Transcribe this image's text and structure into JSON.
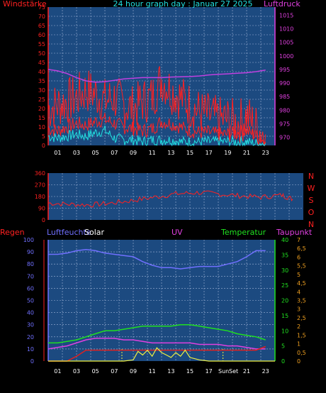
{
  "title": "24 hour graph day : Januar 27 2025",
  "colors": {
    "background": "#000000",
    "plot_bg": "#1c4a80",
    "grid": "#a0b4d8",
    "wind": "#ff2020",
    "gust_cyan": "#20e0e0",
    "pressure": "#c040e0",
    "direction": "#ff2020",
    "humidity": "#7070ff",
    "temperature": "#20e020",
    "dewpoint": "#e040e0",
    "rain": "#e02020",
    "solar": "#f0f040",
    "axis_red": "#ff2020",
    "axis_magenta": "#e040e0",
    "axis_cyan": "#20e0e0",
    "axis_green": "#20e020",
    "axis_orange": "#f0a020",
    "axis_blue": "#7070ff",
    "white": "#ffffff"
  },
  "chart_data": [
    {
      "id": "wind-pressure",
      "type": "line",
      "labels": {
        "left": "Windstärke",
        "title": "24 hour graph day : Januar 27 2025",
        "right": "Luftdruck"
      },
      "x_ticks": [
        "01",
        "03",
        "05",
        "07",
        "09",
        "11",
        "13",
        "15",
        "17",
        "19",
        "21",
        "23"
      ],
      "left_axis": {
        "min": 0,
        "max": 75,
        "ticks": [
          "0",
          "5",
          "10",
          "15",
          "20",
          "25",
          "30",
          "35",
          "40",
          "45",
          "50",
          "55",
          "60",
          "65",
          "70",
          "75"
        ]
      },
      "right_axis": {
        "min": 967,
        "max": 1018,
        "ticks": [
          "970",
          "975",
          "980",
          "985",
          "990",
          "995",
          "1000",
          "1005",
          "1010",
          "1015"
        ]
      },
      "series": [
        {
          "id": "wind-avg",
          "color": "red",
          "unit": "left",
          "x": [
            0,
            1,
            2,
            3,
            4,
            5,
            6,
            7,
            8,
            9,
            10,
            11,
            12,
            13,
            14,
            15,
            16,
            17,
            18,
            19,
            20,
            21,
            22,
            23
          ],
          "values": [
            9,
            8,
            10,
            12,
            11,
            13,
            14,
            12,
            10,
            9,
            8,
            9,
            13,
            12,
            10,
            8,
            7,
            7,
            6,
            6,
            7,
            8,
            5,
            2
          ]
        },
        {
          "id": "wind-gust",
          "color": "red",
          "unit": "left",
          "x": [
            0,
            1,
            2,
            3,
            4,
            5,
            6,
            7,
            8,
            9,
            10,
            11,
            12,
            13,
            14,
            15,
            16,
            17,
            18,
            19,
            20,
            21,
            22,
            23
          ],
          "values": [
            20,
            22,
            24,
            26,
            30,
            28,
            24,
            26,
            22,
            20,
            24,
            26,
            36,
            30,
            26,
            22,
            18,
            16,
            14,
            14,
            12,
            16,
            10,
            6
          ]
        },
        {
          "id": "wind-cyan",
          "color": "cyan",
          "unit": "left",
          "x": [
            0,
            1,
            2,
            3,
            4,
            5,
            6,
            7,
            8,
            9,
            10,
            11,
            12,
            13,
            14,
            15,
            16,
            17,
            18,
            19,
            20,
            21,
            22,
            23
          ],
          "values": [
            5,
            4,
            5,
            6,
            5,
            7,
            8,
            4,
            3,
            3,
            2,
            3,
            3,
            3,
            2,
            2,
            2,
            2,
            2,
            2,
            2,
            2,
            1,
            1
          ]
        },
        {
          "id": "pressure",
          "color": "pressure",
          "unit": "right",
          "x": [
            0,
            1,
            2,
            3,
            4,
            5,
            6,
            7,
            8,
            9,
            10,
            11,
            12,
            13,
            14,
            15,
            16,
            17,
            18,
            19,
            20,
            21,
            22,
            23
          ],
          "values": [
            995,
            994.5,
            993.5,
            992,
            990.8,
            990.3,
            990.5,
            991,
            991.5,
            991.8,
            992,
            992,
            992,
            992.2,
            992.3,
            992.4,
            992.6,
            993,
            993.2,
            993.4,
            993.6,
            993.8,
            994.2,
            994.8
          ]
        }
      ]
    },
    {
      "id": "wind-direction",
      "type": "line",
      "labels": {
        "right": [
          "N",
          "W",
          "S",
          "O",
          "N"
        ]
      },
      "x_ticks": [],
      "left_axis": {
        "min": 0,
        "max": 360,
        "ticks": [
          "0",
          "90",
          "180",
          "270",
          "360"
        ]
      },
      "series": [
        {
          "id": "direction",
          "color": "direction",
          "x": [
            0,
            2,
            4,
            6,
            8,
            10,
            12,
            14,
            16,
            18,
            20,
            22,
            23
          ],
          "values": [
            130,
            120,
            115,
            130,
            150,
            175,
            200,
            210,
            200,
            185,
            175,
            190,
            160
          ]
        }
      ]
    },
    {
      "id": "temp-humidity",
      "type": "line",
      "labels": {
        "rain": "Regen",
        "humidity": "Luftfeuchte",
        "solar": "Solar",
        "uv": "UV",
        "temperature": "Temperatur",
        "dewpoint": "Taupunkt",
        "sun": "Sun",
        "set": "Set"
      },
      "x_ticks": [
        "01",
        "03",
        "05",
        "07",
        "09",
        "11",
        "13",
        "15",
        "17",
        "19",
        "21",
        "23"
      ],
      "left_axis": {
        "min": 0,
        "max": 100,
        "ticks": [
          "0",
          "10",
          "20",
          "30",
          "40",
          "50",
          "60",
          "70",
          "80",
          "90",
          "100"
        ]
      },
      "temp_axis": {
        "min": 0,
        "max": 40,
        "ticks": [
          "0",
          "5",
          "10",
          "15",
          "20",
          "25",
          "30",
          "35",
          "40"
        ]
      },
      "uv_axis": {
        "min": 0,
        "max": 7,
        "ticks": [
          "0",
          "0,5",
          "1",
          "1,5",
          "2",
          "2,5",
          "3",
          "3,5",
          "4",
          "4,5",
          "5",
          "5,5",
          "6",
          "6,5",
          "7"
        ]
      },
      "series": [
        {
          "id": "humidity",
          "color": "humidity",
          "unit": "left",
          "x": [
            0,
            1,
            2,
            3,
            4,
            5,
            6,
            7,
            8,
            9,
            10,
            11,
            12,
            13,
            14,
            15,
            16,
            17,
            18,
            19,
            20,
            21,
            22,
            23
          ],
          "values": [
            88,
            88,
            89,
            91,
            92,
            91,
            89,
            88,
            87,
            86,
            82,
            79,
            77,
            77,
            76,
            77,
            78,
            78,
            78,
            80,
            82,
            86,
            91,
            91
          ]
        },
        {
          "id": "temperature",
          "color": "temperature",
          "unit": "temp",
          "x": [
            0,
            1,
            2,
            3,
            4,
            5,
            6,
            7,
            8,
            9,
            10,
            11,
            12,
            13,
            14,
            15,
            16,
            17,
            18,
            19,
            20,
            21,
            22,
            23
          ],
          "values": [
            6,
            6,
            6.5,
            7,
            8,
            9,
            10,
            10,
            10.5,
            11,
            11.5,
            11.5,
            11.5,
            11.5,
            12,
            12,
            11.5,
            11,
            10.5,
            10,
            9,
            8.5,
            8,
            7
          ]
        },
        {
          "id": "dewpoint",
          "color": "dewpoint",
          "unit": "temp",
          "x": [
            0,
            1,
            2,
            3,
            4,
            5,
            6,
            7,
            8,
            9,
            10,
            11,
            12,
            13,
            14,
            15,
            16,
            17,
            18,
            19,
            20,
            21,
            22,
            23
          ],
          "values": [
            4,
            4.5,
            5,
            6,
            7,
            7.5,
            7.5,
            7.5,
            7,
            7,
            6.5,
            6,
            6,
            6,
            6,
            6,
            5.5,
            5.5,
            5.5,
            5,
            5,
            4.5,
            4,
            4
          ]
        },
        {
          "id": "rain",
          "color": "rain",
          "unit": "left",
          "x": [
            0,
            1,
            2,
            3,
            4,
            5,
            6,
            7,
            8,
            9,
            10,
            11,
            12,
            13,
            14,
            15,
            16,
            17,
            18,
            19,
            20,
            21,
            22,
            23
          ],
          "values": [
            0,
            0,
            0,
            4,
            9,
            9,
            9,
            9,
            9,
            9,
            9,
            9,
            9,
            9,
            9,
            9,
            9,
            9,
            9,
            9,
            9,
            9,
            9,
            12
          ]
        },
        {
          "id": "solar",
          "color": "solar",
          "unit": "left",
          "x": [
            0,
            6,
            7,
            8,
            9,
            9.5,
            10,
            10.5,
            11,
            11.5,
            12,
            12.5,
            13,
            13.5,
            14,
            14.5,
            15,
            16,
            17,
            24
          ],
          "values": [
            0,
            0,
            0,
            0,
            1,
            8,
            5,
            9,
            4,
            11,
            7,
            5,
            3,
            7,
            4,
            9,
            3,
            1,
            0,
            0
          ]
        }
      ]
    }
  ]
}
